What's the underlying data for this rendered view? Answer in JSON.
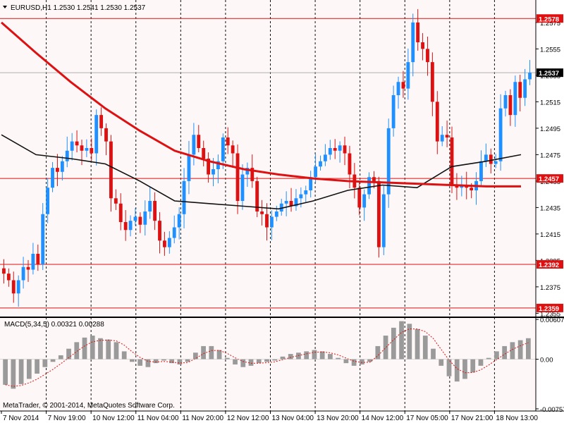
{
  "symbol_label": "EURUSD,H1  1.2530 1.2541 1.2530 1.2537",
  "macd_label": "MACD(5,34,5) 0.00321 0.00288",
  "copyright": "MetaTrader, © 2001-2014, MetaQuotes Software Corp.",
  "colors": {
    "background": "#fdf7f7",
    "bull": "#1e90ff",
    "bear": "#dd1111",
    "level_line": "#e01010",
    "ma_slow": "#dd1111",
    "ma_fast": "#111111",
    "grid": "#111111",
    "macd_hist": "#9a9a9a",
    "macd_signal": "#e01010"
  },
  "chart_data": [
    {
      "type": "candlestick",
      "title": "EURUSD,H1",
      "price_axis": {
        "ylim": [
          1.2352,
          1.2592
        ],
        "ticks": [
          "1.2575",
          "1.2555",
          "1.2535",
          "1.2515",
          "1.2495",
          "1.2475",
          "1.2455",
          "1.2435",
          "1.2415",
          "1.2395",
          "1.2375",
          "1.2355"
        ]
      },
      "time_axis": {
        "labels": [
          "7 Nov 2014",
          "7 Nov 19:00",
          "10 Nov 12:00",
          "11 Nov 04:00",
          "11 Nov 20:00",
          "12 Nov 12:00",
          "13 Nov 04:00",
          "13 Nov 20:00",
          "14 Nov 12:00",
          "17 Nov 05:00",
          "17 Nov 21:00",
          "18 Nov 13:00"
        ]
      },
      "price_levels": [
        {
          "value": 1.2578,
          "label": "1.2578"
        },
        {
          "value": 1.2457,
          "label": "1.2457"
        },
        {
          "value": 1.2392,
          "label": "1.2392"
        },
        {
          "value": 1.2359,
          "label": "1.2359"
        }
      ],
      "current_price": {
        "value": 1.2537,
        "label": "1.2537"
      },
      "close_series": [
        1.2385,
        1.238,
        1.237,
        1.238,
        1.239,
        1.2388,
        1.24,
        1.2392,
        1.243,
        1.245,
        1.2465,
        1.2462,
        1.247,
        1.2478,
        1.2485,
        1.2482,
        1.2478,
        1.248,
        1.2476,
        1.2505,
        1.2495,
        1.2485,
        1.2442,
        1.2438,
        1.2424,
        1.2418,
        1.2425,
        1.2428,
        1.2422,
        1.2432,
        1.244,
        1.2425,
        1.241,
        1.2405,
        1.2412,
        1.242,
        1.243,
        1.2455,
        1.2475,
        1.249,
        1.248,
        1.2472,
        1.246,
        1.2464,
        1.247,
        1.2488,
        1.2482,
        1.2476,
        1.244,
        1.246,
        1.2465,
        1.2455,
        1.2432,
        1.243,
        1.242,
        1.2428,
        1.2432,
        1.2438,
        1.244,
        1.2436,
        1.2442,
        1.2445,
        1.2448,
        1.2458,
        1.2466,
        1.247,
        1.2475,
        1.248,
        1.2478,
        1.2482,
        1.2476,
        1.246,
        1.245,
        1.2435,
        1.2445,
        1.2458,
        1.2455,
        1.2405,
        1.2445,
        1.2495,
        1.252,
        1.253,
        1.2525,
        1.2545,
        1.2575,
        1.256,
        1.2555,
        1.2545,
        1.2515,
        1.2485,
        1.249,
        1.2488,
        1.2452,
        1.245,
        1.2452,
        1.245,
        1.2448,
        1.2455,
        1.247,
        1.2475,
        1.2468,
        1.247,
        1.251,
        1.252,
        1.2505,
        1.253,
        1.2518,
        1.2532,
        1.2537
      ],
      "ma_slow": [
        1.2575,
        1.2552,
        1.253,
        1.251,
        1.2493,
        1.2478,
        1.247,
        1.2464,
        1.246,
        1.2457,
        1.2455,
        1.2454,
        1.2453,
        1.2452,
        1.2451,
        1.2451
      ],
      "ma_fast": [
        1.249,
        1.2475,
        1.2472,
        1.2468,
        1.2455,
        1.244,
        1.2438,
        1.2436,
        1.2434,
        1.244,
        1.2448,
        1.2452,
        1.245,
        1.2466,
        1.247,
        1.2475
      ]
    },
    {
      "type": "histogram",
      "title": "MACD(5,34,5)",
      "ylim": [
        -0.0079,
        0.0064
      ],
      "ticks": [
        "0.00607",
        "0.00",
        "-0.00757"
      ],
      "macd_values": [
        -0.0039,
        -0.0045,
        -0.0038,
        -0.003,
        -0.0022,
        -0.0012,
        -0.0004,
        0.0006,
        0.0016,
        0.0026,
        0.0033,
        0.0036,
        0.0032,
        0.003,
        0.0026,
        0.0012,
        -0.0004,
        -0.001,
        -0.0012,
        -0.0006,
        -0.0002,
        -0.0006,
        -0.0008,
        -0.0004,
        0.001,
        0.002,
        0.002,
        0.0014,
        0.0002,
        -0.0008,
        -0.0012,
        -0.001,
        -0.0006,
        -0.0004,
        -0.0002,
        0.0004,
        0.0008,
        0.001,
        0.0012,
        0.0014,
        0.0012,
        0.0008,
        0.0002,
        -0.0006,
        -0.001,
        -0.0008,
        -0.0004,
        0.002,
        0.0036,
        0.0048,
        0.0058,
        0.0054,
        0.0046,
        0.0036,
        0.0016,
        -0.001,
        -0.0026,
        -0.0034,
        -0.003,
        -0.002,
        -0.001,
        0.0002,
        0.0012,
        0.002,
        0.0026,
        0.0029,
        0.0032
      ]
    }
  ]
}
